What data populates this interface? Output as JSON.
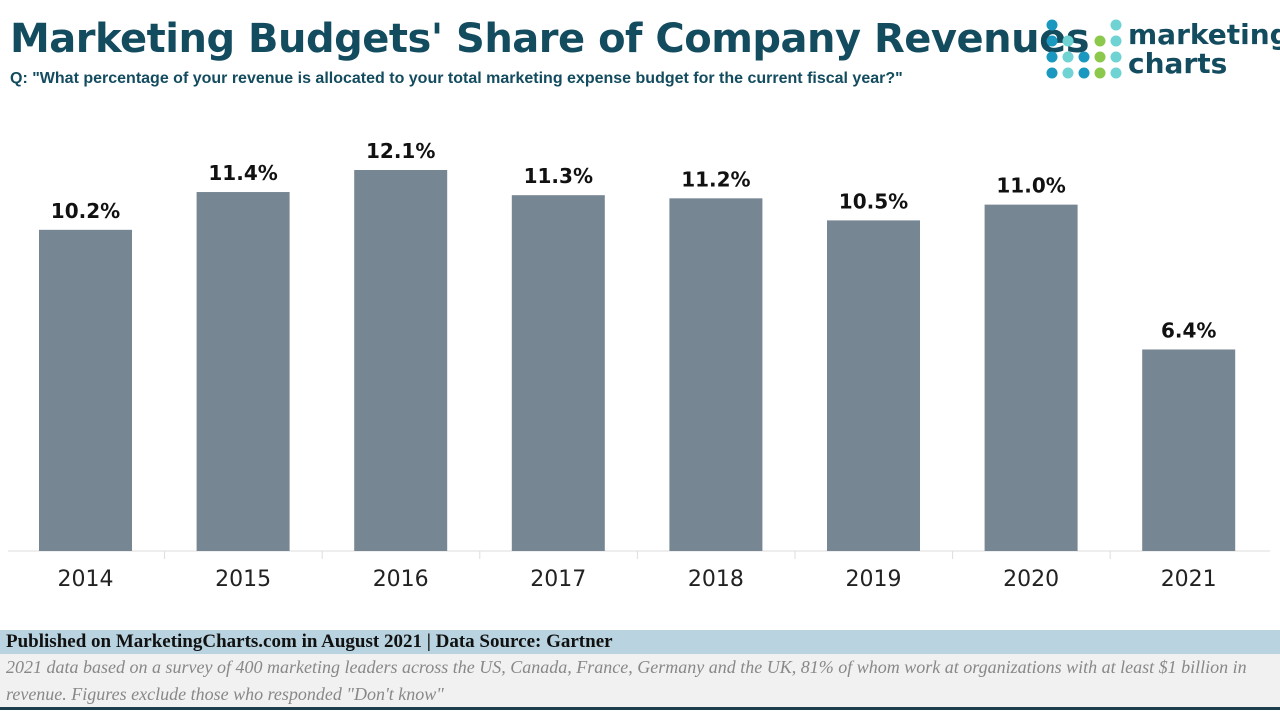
{
  "title": "Marketing Budgets' Share of Company Revenues",
  "subtitle": "Q: \"What percentage of your revenue is allocated to your total marketing expense budget for the current fiscal year?\"",
  "logo": {
    "line1": "marketing",
    "line2": "charts",
    "colors": [
      "#1a98bf",
      "#6fd3d3",
      "#8cc84b"
    ]
  },
  "footer": {
    "published": "Published on MarketingCharts.com in August 2021 | Data Source: Gartner",
    "note": "2021 data based on a survey of 400 marketing leaders across the US, Canada, France, Germany and the UK, 81% of whom work at organizations with at least $1 billion in revenue. Figures exclude those who responded \"Don't know\""
  },
  "chart_data": {
    "type": "bar",
    "categories": [
      "2014",
      "2015",
      "2016",
      "2017",
      "2018",
      "2019",
      "2020",
      "2021"
    ],
    "values": [
      10.2,
      11.4,
      12.1,
      11.3,
      11.2,
      10.5,
      11.0,
      6.4
    ],
    "labels": [
      "10.2%",
      "11.4%",
      "12.1%",
      "11.3%",
      "11.2%",
      "10.5%",
      "11.0%",
      "6.4%"
    ],
    "ylim": [
      0,
      12.1
    ],
    "bar_color": "#778693",
    "grid": false
  }
}
